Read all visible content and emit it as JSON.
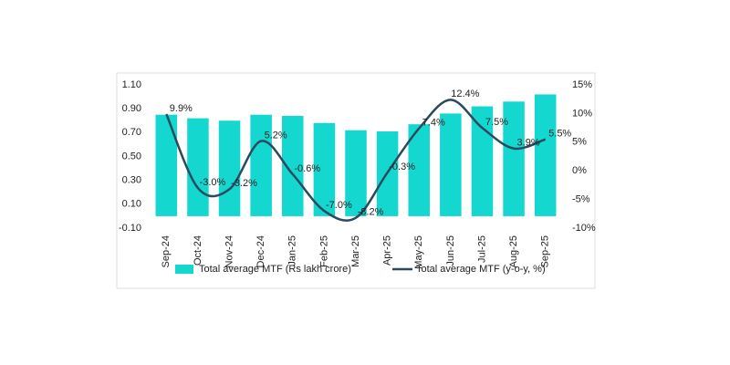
{
  "chart_data": {
    "type": "bar-line",
    "categories": [
      "Sep-24",
      "Oct-24",
      "Nov-24",
      "Dec-24",
      "Jan-25",
      "Feb-25",
      "Mar-25",
      "Apr-25",
      "May-25",
      "Jun-25",
      "Jul-25",
      "Aug-25",
      "Sep-25"
    ],
    "series": [
      {
        "name": "Total average MTF (Rs lakh crore)",
        "type": "bar",
        "color": "#14d8d0",
        "values": [
          0.85,
          0.82,
          0.8,
          0.85,
          0.84,
          0.78,
          0.72,
          0.71,
          0.77,
          0.86,
          0.92,
          0.96,
          1.02
        ]
      },
      {
        "name": "Total average MTF (y-o-y, %)",
        "type": "line",
        "axis": "y2",
        "color": "#2b4a5e",
        "values": [
          9.9,
          -3.0,
          -3.2,
          5.2,
          -0.6,
          -7.0,
          -8.2,
          -0.3,
          7.4,
          12.4,
          7.5,
          3.9,
          5.5
        ],
        "value_labels": [
          "9.9%",
          "-3.0%",
          "-3.2%",
          "5.2%",
          "-0.6%",
          "-7.0%",
          "-8.2%",
          "-0.3%",
          "7.4%",
          "12.4%",
          "7.5%",
          "3.9%",
          "5.5%"
        ]
      }
    ],
    "ylim": [
      -0.1,
      1.1
    ],
    "yticks": [
      {
        "value": -0.1,
        "label": "-0.10"
      },
      {
        "value": 0.1,
        "label": "0.10"
      },
      {
        "value": 0.3,
        "label": "0.30"
      },
      {
        "value": 0.5,
        "label": "0.50"
      },
      {
        "value": 0.7,
        "label": "0.70"
      },
      {
        "value": 0.9,
        "label": "0.90"
      },
      {
        "value": 1.1,
        "label": "1.10"
      }
    ],
    "y2lim": [
      -10,
      15
    ],
    "y2ticks": [
      {
        "value": -10,
        "label": "-10%"
      },
      {
        "value": -5,
        "label": "-5%"
      },
      {
        "value": 0,
        "label": "0%"
      },
      {
        "value": 5,
        "label": "5%"
      },
      {
        "value": 10,
        "label": "10%"
      },
      {
        "value": 15,
        "label": "15%"
      }
    ]
  }
}
